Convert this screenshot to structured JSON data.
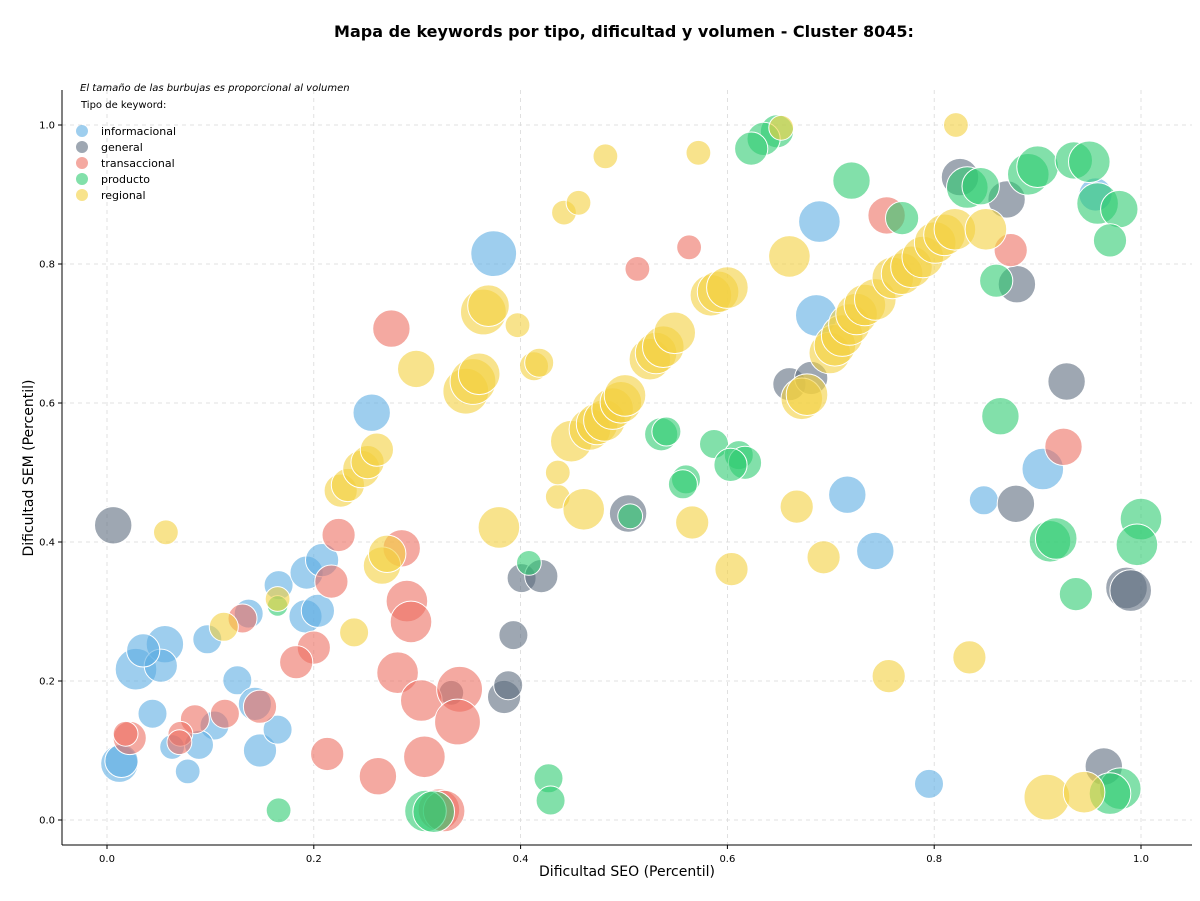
{
  "chart_data": {
    "type": "scatter",
    "title": "Mapa de keywords por tipo, dificultad y volumen - Cluster 8045:",
    "xlabel": "Dificultad SEO (Percentil)",
    "ylabel": "Dificultad SEM (Percentil)",
    "note": "El tamaño de las burbujas es proporcional al volumen",
    "legend_title": "Tipo de keyword:",
    "legend_position": "top-left",
    "grid": true,
    "xlim": [
      -0.045,
      1.05
    ],
    "ylim": [
      -0.035,
      1.05
    ],
    "xticks": [
      "0.0",
      "0.2",
      "0.4",
      "0.6",
      "0.8",
      "1.0"
    ],
    "yticks": [
      "0.0",
      "0.2",
      "0.4",
      "0.6",
      "0.8",
      "1.0"
    ],
    "series": [
      {
        "name": "informacional",
        "color": "#5dade2",
        "points": [
          [
            0.374,
            0.815,
            9
          ],
          [
            0.256,
            0.586,
            7
          ],
          [
            0.689,
            0.861,
            8
          ],
          [
            0.686,
            0.726,
            8
          ],
          [
            0.716,
            0.468,
            7
          ],
          [
            0.743,
            0.387,
            7
          ],
          [
            0.905,
            0.505,
            8
          ],
          [
            0.848,
            0.46,
            5
          ],
          [
            0.956,
            0.9,
            6
          ],
          [
            0.012,
            0.081,
            7
          ],
          [
            0.014,
            0.085,
            6
          ],
          [
            0.044,
            0.153,
            5
          ],
          [
            0.028,
            0.217,
            8
          ],
          [
            0.056,
            0.253,
            7
          ],
          [
            0.052,
            0.222,
            6
          ],
          [
            0.035,
            0.244,
            6
          ],
          [
            0.097,
            0.26,
            5
          ],
          [
            0.126,
            0.201,
            5
          ],
          [
            0.137,
            0.297,
            5
          ],
          [
            0.143,
            0.167,
            6
          ],
          [
            0.148,
            0.1,
            6
          ],
          [
            0.104,
            0.136,
            5
          ],
          [
            0.089,
            0.108,
            5
          ],
          [
            0.063,
            0.105,
            4
          ],
          [
            0.078,
            0.07,
            4
          ],
          [
            0.165,
            0.13,
            5
          ],
          [
            0.166,
            0.338,
            5
          ],
          [
            0.192,
            0.293,
            6
          ],
          [
            0.193,
            0.356,
            6
          ],
          [
            0.204,
            0.301,
            6
          ],
          [
            0.208,
            0.374,
            6
          ],
          [
            0.795,
            0.052,
            5
          ]
        ]
      },
      {
        "name": "general",
        "color": "#5d6d7e",
        "points": [
          [
            0.006,
            0.424,
            7
          ],
          [
            0.504,
            0.441,
            7
          ],
          [
            0.825,
            0.925,
            7
          ],
          [
            0.87,
            0.893,
            7
          ],
          [
            0.88,
            0.771,
            7
          ],
          [
            0.928,
            0.631,
            7
          ],
          [
            0.879,
            0.455,
            7
          ],
          [
            0.986,
            0.334,
            8
          ],
          [
            0.99,
            0.33,
            8
          ],
          [
            0.964,
            0.077,
            7
          ],
          [
            0.66,
            0.627,
            6
          ],
          [
            0.681,
            0.636,
            6
          ],
          [
            0.401,
            0.348,
            5
          ],
          [
            0.42,
            0.351,
            6
          ],
          [
            0.393,
            0.266,
            5
          ],
          [
            0.384,
            0.177,
            6
          ],
          [
            0.388,
            0.194,
            5
          ],
          [
            0.333,
            0.183,
            4
          ]
        ]
      },
      {
        "name": "transaccional",
        "color": "#ec7063",
        "points": [
          [
            0.275,
            0.707,
            7
          ],
          [
            0.563,
            0.824,
            4
          ],
          [
            0.513,
            0.793,
            4
          ],
          [
            0.754,
            0.87,
            7
          ],
          [
            0.874,
            0.82,
            6
          ],
          [
            0.925,
            0.537,
            7
          ],
          [
            0.224,
            0.41,
            6
          ],
          [
            0.285,
            0.391,
            7
          ],
          [
            0.217,
            0.343,
            6
          ],
          [
            0.29,
            0.315,
            8
          ],
          [
            0.294,
            0.285,
            8
          ],
          [
            0.2,
            0.248,
            6
          ],
          [
            0.183,
            0.227,
            6
          ],
          [
            0.281,
            0.212,
            8
          ],
          [
            0.304,
            0.172,
            8
          ],
          [
            0.341,
            0.188,
            9
          ],
          [
            0.339,
            0.141,
            9
          ],
          [
            0.307,
            0.091,
            8
          ],
          [
            0.213,
            0.095,
            6
          ],
          [
            0.262,
            0.063,
            7
          ],
          [
            0.131,
            0.29,
            5
          ],
          [
            0.148,
            0.163,
            6
          ],
          [
            0.114,
            0.153,
            5
          ],
          [
            0.085,
            0.145,
            5
          ],
          [
            0.071,
            0.124,
            4
          ],
          [
            0.07,
            0.112,
            4
          ],
          [
            0.022,
            0.118,
            6
          ],
          [
            0.018,
            0.124,
            4
          ],
          [
            0.321,
            0.015,
            8
          ],
          [
            0.326,
            0.013,
            8
          ]
        ]
      },
      {
        "name": "producto",
        "color": "#2ecc71",
        "points": [
          [
            0.648,
            0.991,
            6
          ],
          [
            0.635,
            0.98,
            6
          ],
          [
            0.623,
            0.966,
            6
          ],
          [
            0.72,
            0.92,
            7
          ],
          [
            0.769,
            0.866,
            6
          ],
          [
            0.832,
            0.91,
            8
          ],
          [
            0.845,
            0.912,
            7
          ],
          [
            0.891,
            0.929,
            8
          ],
          [
            0.9,
            0.94,
            8
          ],
          [
            0.935,
            0.949,
            7
          ],
          [
            0.95,
            0.947,
            8
          ],
          [
            0.958,
            0.887,
            8
          ],
          [
            0.979,
            0.879,
            7
          ],
          [
            0.97,
            0.834,
            6
          ],
          [
            0.86,
            0.776,
            6
          ],
          [
            0.864,
            0.581,
            7
          ],
          [
            0.536,
            0.555,
            6
          ],
          [
            0.541,
            0.559,
            5
          ],
          [
            0.587,
            0.541,
            5
          ],
          [
            0.611,
            0.525,
            5
          ],
          [
            0.617,
            0.514,
            6
          ],
          [
            0.603,
            0.511,
            6
          ],
          [
            0.56,
            0.49,
            5
          ],
          [
            0.557,
            0.483,
            5
          ],
          [
            0.912,
            0.401,
            8
          ],
          [
            0.918,
            0.405,
            8
          ],
          [
            1.0,
            0.433,
            8
          ],
          [
            0.996,
            0.396,
            8
          ],
          [
            0.937,
            0.325,
            6
          ],
          [
            0.98,
            0.045,
            8
          ],
          [
            0.97,
            0.038,
            8
          ],
          [
            0.408,
            0.37,
            4
          ],
          [
            0.427,
            0.06,
            5
          ],
          [
            0.429,
            0.028,
            5
          ],
          [
            0.308,
            0.013,
            8
          ],
          [
            0.316,
            0.012,
            8
          ],
          [
            0.165,
            0.308,
            3
          ],
          [
            0.166,
            0.014,
            4
          ],
          [
            0.506,
            0.437,
            4
          ]
        ]
      },
      {
        "name": "regional",
        "color": "#f4d03f",
        "points": [
          [
            0.057,
            0.414,
            4
          ],
          [
            0.113,
            0.278,
            5
          ],
          [
            0.165,
            0.318,
            4
          ],
          [
            0.239,
            0.27,
            5
          ],
          [
            0.226,
            0.474,
            6
          ],
          [
            0.233,
            0.482,
            6
          ],
          [
            0.246,
            0.505,
            7
          ],
          [
            0.252,
            0.515,
            6
          ],
          [
            0.261,
            0.533,
            6
          ],
          [
            0.266,
            0.366,
            7
          ],
          [
            0.271,
            0.383,
            7
          ],
          [
            0.299,
            0.649,
            7
          ],
          [
            0.347,
            0.617,
            9
          ],
          [
            0.354,
            0.631,
            9
          ],
          [
            0.36,
            0.642,
            8
          ],
          [
            0.364,
            0.731,
            9
          ],
          [
            0.369,
            0.74,
            8
          ],
          [
            0.379,
            0.421,
            8
          ],
          [
            0.397,
            0.712,
            4
          ],
          [
            0.413,
            0.653,
            5
          ],
          [
            0.418,
            0.658,
            5
          ],
          [
            0.436,
            0.465,
            4
          ],
          [
            0.436,
            0.5,
            4
          ],
          [
            0.442,
            0.874,
            4
          ],
          [
            0.456,
            0.888,
            4
          ],
          [
            0.449,
            0.545,
            8
          ],
          [
            0.461,
            0.447,
            8
          ],
          [
            0.467,
            0.562,
            8
          ],
          [
            0.474,
            0.57,
            8
          ],
          [
            0.481,
            0.575,
            8
          ],
          [
            0.489,
            0.592,
            8
          ],
          [
            0.497,
            0.601,
            8
          ],
          [
            0.501,
            0.611,
            8
          ],
          [
            0.482,
            0.955,
            4
          ],
          [
            0.525,
            0.663,
            8
          ],
          [
            0.531,
            0.672,
            8
          ],
          [
            0.538,
            0.681,
            8
          ],
          [
            0.549,
            0.701,
            8
          ],
          [
            0.566,
            0.428,
            6
          ],
          [
            0.572,
            0.96,
            4
          ],
          [
            0.584,
            0.755,
            8
          ],
          [
            0.591,
            0.76,
            8
          ],
          [
            0.6,
            0.766,
            8
          ],
          [
            0.604,
            0.361,
            6
          ],
          [
            0.66,
            0.811,
            8
          ],
          [
            0.667,
            0.451,
            6
          ],
          [
            0.672,
            0.606,
            8
          ],
          [
            0.677,
            0.612,
            8
          ],
          [
            0.693,
            0.378,
            6
          ],
          [
            0.699,
            0.672,
            8
          ],
          [
            0.704,
            0.683,
            8
          ],
          [
            0.711,
            0.697,
            8
          ],
          [
            0.718,
            0.713,
            8
          ],
          [
            0.725,
            0.728,
            8
          ],
          [
            0.733,
            0.741,
            8
          ],
          [
            0.743,
            0.749,
            8
          ],
          [
            0.756,
            0.207,
            6
          ],
          [
            0.76,
            0.78,
            8
          ],
          [
            0.769,
            0.786,
            8
          ],
          [
            0.778,
            0.796,
            8
          ],
          [
            0.789,
            0.81,
            8
          ],
          [
            0.801,
            0.831,
            8
          ],
          [
            0.81,
            0.842,
            8
          ],
          [
            0.82,
            0.85,
            8
          ],
          [
            0.821,
            1.0,
            4
          ],
          [
            0.834,
            0.234,
            6
          ],
          [
            0.85,
            0.85,
            8
          ],
          [
            0.909,
            0.033,
            9
          ],
          [
            0.945,
            0.04,
            8
          ],
          [
            0.652,
            0.996,
            4
          ]
        ]
      }
    ]
  }
}
